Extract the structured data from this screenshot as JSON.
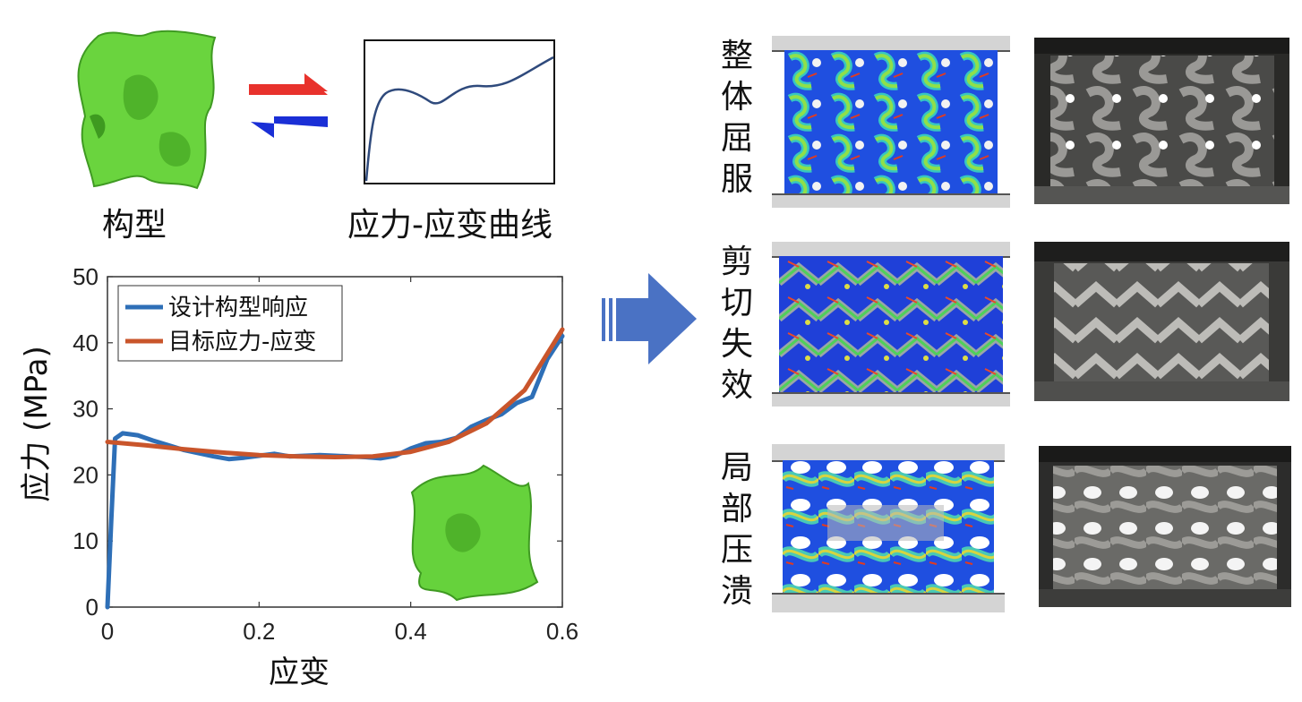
{
  "top": {
    "config_label": "构型",
    "curve_label": "应力-应变曲线"
  },
  "chart_data": {
    "type": "line",
    "xlabel": "应变",
    "ylabel": "应力 (MPa)",
    "xlim": [
      0,
      0.6
    ],
    "ylim": [
      0,
      50
    ],
    "xticks": [
      0,
      0.2,
      0.4,
      0.6
    ],
    "yticks": [
      0,
      10,
      20,
      30,
      40,
      50
    ],
    "xtick_labels": [
      "0",
      "0.2",
      "0.4",
      "0.6"
    ],
    "ytick_labels": [
      "0",
      "10",
      "20",
      "30",
      "40",
      "50"
    ],
    "legend_position": "top-left",
    "series": [
      {
        "name": "设计构型响应",
        "color": "#2e6fb7",
        "x": [
          0,
          0.005,
          0.01,
          0.02,
          0.04,
          0.06,
          0.08,
          0.1,
          0.12,
          0.14,
          0.16,
          0.18,
          0.2,
          0.22,
          0.24,
          0.26,
          0.28,
          0.3,
          0.32,
          0.34,
          0.36,
          0.38,
          0.4,
          0.42,
          0.44,
          0.46,
          0.48,
          0.5,
          0.52,
          0.54,
          0.56,
          0.58,
          0.6
        ],
        "y": [
          0,
          13,
          25.5,
          26.3,
          26.0,
          25.2,
          24.5,
          23.8,
          23.3,
          22.8,
          22.4,
          22.6,
          22.9,
          23.2,
          22.8,
          22.9,
          23.0,
          22.9,
          22.8,
          22.7,
          22.5,
          22.9,
          24.0,
          24.8,
          25.0,
          25.6,
          27.3,
          28.3,
          29.2,
          30.9,
          31.8,
          37.5,
          41.0
        ]
      },
      {
        "name": "目标应力-应变",
        "color": "#c9552b",
        "x": [
          0,
          0.05,
          0.1,
          0.15,
          0.2,
          0.25,
          0.3,
          0.35,
          0.4,
          0.45,
          0.5,
          0.55,
          0.6
        ],
        "y": [
          25.0,
          24.5,
          23.9,
          23.4,
          23.0,
          22.8,
          22.7,
          22.8,
          23.5,
          25.0,
          27.8,
          32.8,
          42.0
        ]
      }
    ]
  },
  "failure_modes": [
    {
      "label": [
        "整",
        "体",
        "屈",
        "服"
      ]
    },
    {
      "label": [
        "剪",
        "切",
        "失",
        "效"
      ]
    },
    {
      "label": [
        "局",
        "部",
        "压",
        "溃"
      ]
    }
  ],
  "colors": {
    "arrow_red": "#e8322c",
    "arrow_blue": "#1a2fd6",
    "big_arrow": "#4a72c4",
    "lattice_green": "#66d23c"
  }
}
